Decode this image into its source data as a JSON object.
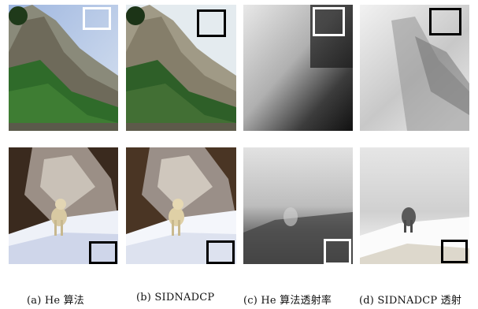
{
  "figure": {
    "captions": [
      "(a) He 算法",
      "(b) SIDNADCP",
      "(c) He 算法透射率",
      "(d) SIDNADCP 透射"
    ],
    "panels": {
      "row1": [
        {
          "column": "a",
          "content": "hazy mountain photo with trees and rock cliffs, sky upper right"
        },
        {
          "column": "b",
          "content": "dehazed mountain photo"
        },
        {
          "column": "c",
          "content": "grayscale transmission map, dark lower-right"
        },
        {
          "column": "d",
          "content": "grayscale transmission map, mostly light"
        }
      ],
      "row2": [
        {
          "column": "a",
          "content": "snowy slope with white dog, dark trees"
        },
        {
          "column": "b",
          "content": "dehazed snowy slope with dog"
        },
        {
          "column": "c",
          "content": "grayscale transmission map, dark bottom"
        },
        {
          "column": "d",
          "content": "light transmission map with dog silhouette"
        }
      ]
    },
    "marker_color_dark": "#000000",
    "marker_color_light": "#ffffff"
  }
}
